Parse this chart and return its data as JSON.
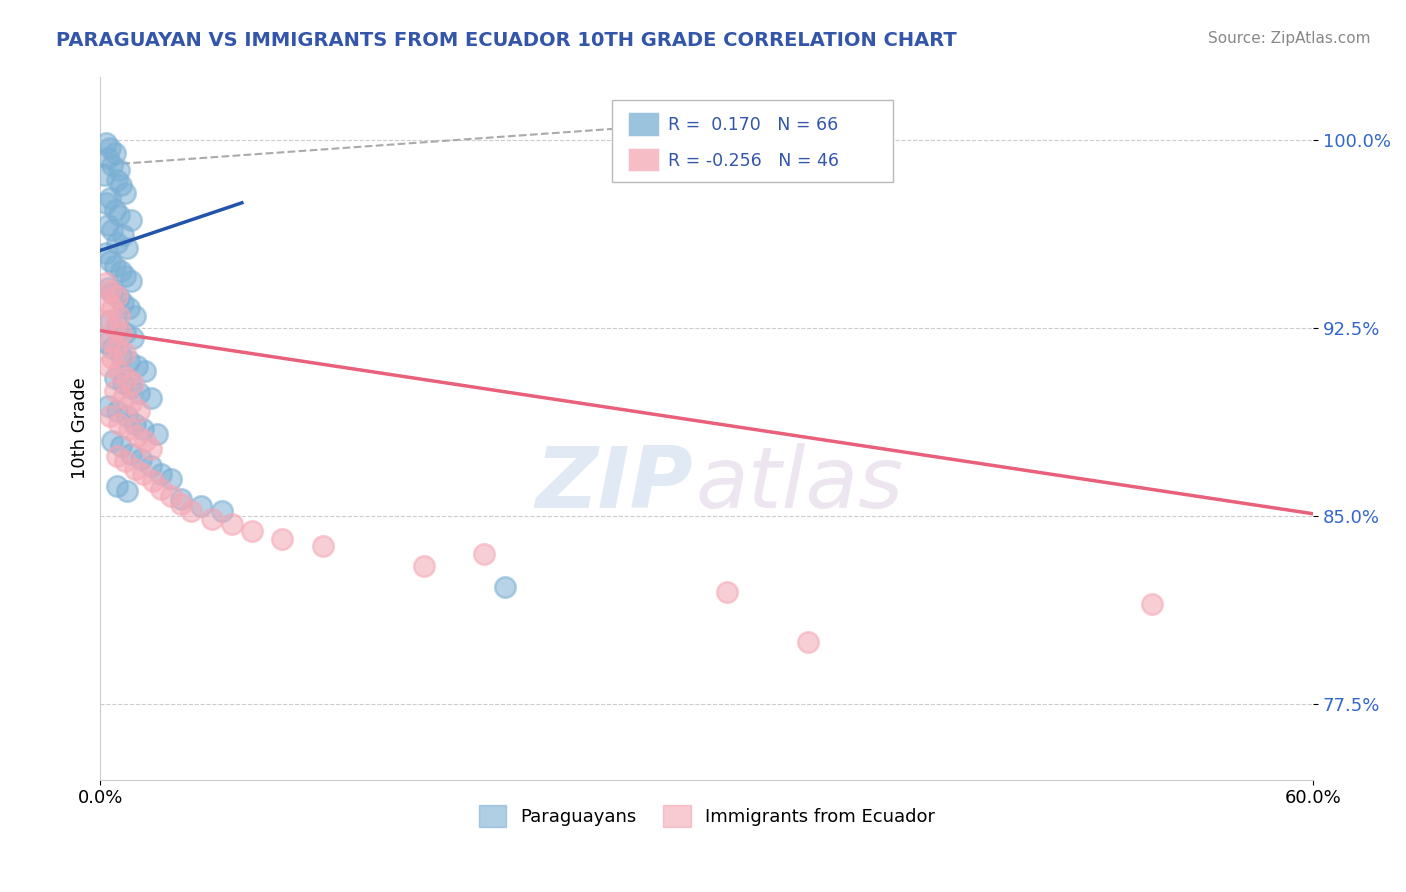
{
  "title": "PARAGUAYAN VS IMMIGRANTS FROM ECUADOR 10TH GRADE CORRELATION CHART",
  "source_text": "Source: ZipAtlas.com",
  "ylabel": "10th Grade",
  "xlim": [
    0.0,
    0.6
  ],
  "ylim": [
    0.745,
    1.025
  ],
  "yticks": [
    0.775,
    0.85,
    0.925,
    1.0
  ],
  "ytick_labels": [
    "77.5%",
    "85.0%",
    "92.5%",
    "100.0%"
  ],
  "xtick_vals": [
    0.0,
    0.6
  ],
  "xtick_labels": [
    "0.0%",
    "60.0%"
  ],
  "blue_R": "0.170",
  "blue_N": "66",
  "pink_R": "-0.256",
  "pink_N": "46",
  "blue_color": "#7BAFD4",
  "pink_color": "#F4A7B4",
  "blue_line_color": "#2255AA",
  "pink_line_color": "#E8607A",
  "blue_line": [
    [
      0.0,
      0.956
    ],
    [
      0.07,
      0.975
    ]
  ],
  "pink_line": [
    [
      0.0,
      0.924
    ],
    [
      0.6,
      0.851
    ]
  ],
  "dash_line": [
    [
      0.0,
      0.99
    ],
    [
      0.35,
      1.01
    ]
  ],
  "blue_scatter": [
    [
      0.003,
      0.999
    ],
    [
      0.005,
      0.997
    ],
    [
      0.007,
      0.995
    ],
    [
      0.004,
      0.993
    ],
    [
      0.006,
      0.99
    ],
    [
      0.009,
      0.988
    ],
    [
      0.002,
      0.986
    ],
    [
      0.008,
      0.984
    ],
    [
      0.01,
      0.982
    ],
    [
      0.012,
      0.979
    ],
    [
      0.005,
      0.977
    ],
    [
      0.003,
      0.975
    ],
    [
      0.007,
      0.972
    ],
    [
      0.009,
      0.97
    ],
    [
      0.015,
      0.968
    ],
    [
      0.004,
      0.966
    ],
    [
      0.006,
      0.964
    ],
    [
      0.011,
      0.962
    ],
    [
      0.008,
      0.959
    ],
    [
      0.013,
      0.957
    ],
    [
      0.003,
      0.955
    ],
    [
      0.005,
      0.952
    ],
    [
      0.007,
      0.95
    ],
    [
      0.01,
      0.948
    ],
    [
      0.012,
      0.946
    ],
    [
      0.015,
      0.944
    ],
    [
      0.004,
      0.941
    ],
    [
      0.006,
      0.939
    ],
    [
      0.009,
      0.937
    ],
    [
      0.011,
      0.935
    ],
    [
      0.014,
      0.933
    ],
    [
      0.017,
      0.93
    ],
    [
      0.005,
      0.928
    ],
    [
      0.008,
      0.926
    ],
    [
      0.012,
      0.923
    ],
    [
      0.016,
      0.921
    ],
    [
      0.003,
      0.919
    ],
    [
      0.006,
      0.917
    ],
    [
      0.01,
      0.914
    ],
    [
      0.014,
      0.912
    ],
    [
      0.018,
      0.91
    ],
    [
      0.022,
      0.908
    ],
    [
      0.007,
      0.905
    ],
    [
      0.011,
      0.903
    ],
    [
      0.015,
      0.901
    ],
    [
      0.019,
      0.899
    ],
    [
      0.025,
      0.897
    ],
    [
      0.004,
      0.894
    ],
    [
      0.008,
      0.892
    ],
    [
      0.013,
      0.89
    ],
    [
      0.017,
      0.887
    ],
    [
      0.021,
      0.885
    ],
    [
      0.028,
      0.883
    ],
    [
      0.006,
      0.88
    ],
    [
      0.01,
      0.878
    ],
    [
      0.015,
      0.875
    ],
    [
      0.02,
      0.873
    ],
    [
      0.025,
      0.87
    ],
    [
      0.03,
      0.867
    ],
    [
      0.035,
      0.865
    ],
    [
      0.008,
      0.862
    ],
    [
      0.013,
      0.86
    ],
    [
      0.04,
      0.857
    ],
    [
      0.05,
      0.854
    ],
    [
      0.06,
      0.852
    ],
    [
      0.2,
      0.822
    ]
  ],
  "pink_scatter": [
    [
      0.003,
      0.943
    ],
    [
      0.005,
      0.94
    ],
    [
      0.008,
      0.938
    ],
    [
      0.004,
      0.935
    ],
    [
      0.006,
      0.933
    ],
    [
      0.009,
      0.93
    ],
    [
      0.003,
      0.928
    ],
    [
      0.007,
      0.925
    ],
    [
      0.01,
      0.923
    ],
    [
      0.005,
      0.92
    ],
    [
      0.008,
      0.918
    ],
    [
      0.012,
      0.915
    ],
    [
      0.006,
      0.913
    ],
    [
      0.004,
      0.91
    ],
    [
      0.009,
      0.908
    ],
    [
      0.013,
      0.905
    ],
    [
      0.016,
      0.903
    ],
    [
      0.007,
      0.9
    ],
    [
      0.011,
      0.897
    ],
    [
      0.015,
      0.895
    ],
    [
      0.019,
      0.892
    ],
    [
      0.005,
      0.89
    ],
    [
      0.009,
      0.887
    ],
    [
      0.014,
      0.885
    ],
    [
      0.018,
      0.882
    ],
    [
      0.022,
      0.88
    ],
    [
      0.025,
      0.877
    ],
    [
      0.008,
      0.874
    ],
    [
      0.012,
      0.872
    ],
    [
      0.017,
      0.869
    ],
    [
      0.021,
      0.867
    ],
    [
      0.026,
      0.864
    ],
    [
      0.03,
      0.861
    ],
    [
      0.035,
      0.858
    ],
    [
      0.04,
      0.855
    ],
    [
      0.045,
      0.852
    ],
    [
      0.055,
      0.849
    ],
    [
      0.065,
      0.847
    ],
    [
      0.075,
      0.844
    ],
    [
      0.09,
      0.841
    ],
    [
      0.11,
      0.838
    ],
    [
      0.16,
      0.83
    ],
    [
      0.19,
      0.835
    ],
    [
      0.31,
      0.82
    ],
    [
      0.35,
      0.8
    ],
    [
      0.52,
      0.815
    ]
  ],
  "watermark_zip": "ZIP",
  "watermark_atlas": "atlas",
  "background_color": "#FFFFFF",
  "grid_color": "#CCCCCC",
  "title_color": "#3355AA",
  "source_color": "#888888"
}
